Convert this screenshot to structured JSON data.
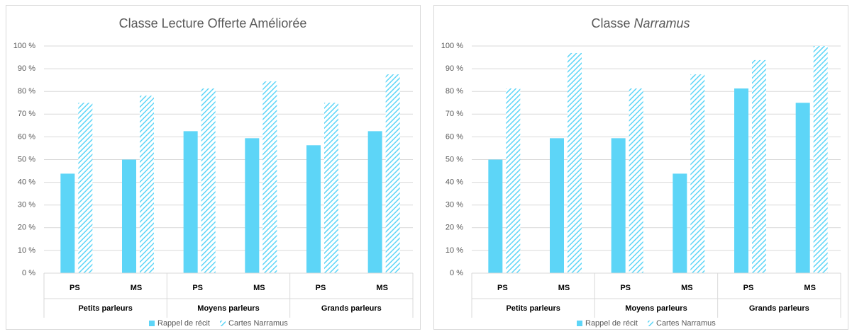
{
  "chart_data": [
    {
      "type": "bar",
      "title": [
        "Classe Lecture Offerte Améliorée"
      ],
      "categories": [
        "PS",
        "MS",
        "PS",
        "MS",
        "PS",
        "MS"
      ],
      "groups": [
        "Petits parleurs",
        "Moyens parleurs",
        "Grands parleurs"
      ],
      "series": [
        {
          "name": "Rappel de récit",
          "color": "#5dd5f7",
          "pattern": "solid",
          "values": [
            43.8,
            50,
            62.5,
            59.4,
            56.3,
            62.5
          ]
        },
        {
          "name": "Cartes Narramus",
          "color": "#5dd5f7",
          "pattern": "hatch",
          "values": [
            75,
            78.1,
            81.3,
            84.4,
            75,
            87.5
          ]
        }
      ],
      "ylim": [
        0,
        100
      ],
      "yticks": [
        {
          "value": 0,
          "label": "0 %"
        },
        {
          "value": 10,
          "label": "10 %"
        },
        {
          "value": 20,
          "label": "20 %"
        },
        {
          "value": 30,
          "label": "30 %"
        },
        {
          "value": 40,
          "label": "40 %"
        },
        {
          "value": 50,
          "label": "50 %"
        },
        {
          "value": 60,
          "label": "60 %"
        },
        {
          "value": 70,
          "label": "70 %"
        },
        {
          "value": 80,
          "label": "80 %"
        },
        {
          "value": 90,
          "label": "90 %"
        },
        {
          "value": 100,
          "label": "100 %"
        }
      ],
      "grid": true,
      "legend": "bottom"
    },
    {
      "type": "bar",
      "title": [
        "Classe",
        "Narramus"
      ],
      "categories": [
        "PS",
        "MS",
        "PS",
        "MS",
        "PS",
        "MS"
      ],
      "groups": [
        "Petits parleurs",
        "Moyens parleurs",
        "Grands parleurs"
      ],
      "series": [
        {
          "name": "Rappel de récit",
          "color": "#5dd5f7",
          "pattern": "solid",
          "values": [
            50,
            59.4,
            59.4,
            43.8,
            81.3,
            75
          ]
        },
        {
          "name": "Cartes Narramus",
          "color": "#5dd5f7",
          "pattern": "hatch",
          "values": [
            81.3,
            96.9,
            81.3,
            87.5,
            93.8,
            100
          ]
        }
      ],
      "ylim": [
        0,
        100
      ],
      "yticks": [
        {
          "value": 0,
          "label": "0 %"
        },
        {
          "value": 10,
          "label": "10 %"
        },
        {
          "value": 20,
          "label": "20 %"
        },
        {
          "value": 30,
          "label": "30 %"
        },
        {
          "value": 40,
          "label": "40 %"
        },
        {
          "value": 50,
          "label": "50 %"
        },
        {
          "value": 60,
          "label": "60 %"
        },
        {
          "value": 70,
          "label": "70 %"
        },
        {
          "value": 80,
          "label": "80 %"
        },
        {
          "value": 90,
          "label": "90 %"
        },
        {
          "value": 100,
          "label": "100 %"
        }
      ],
      "grid": true,
      "legend": "bottom"
    }
  ]
}
